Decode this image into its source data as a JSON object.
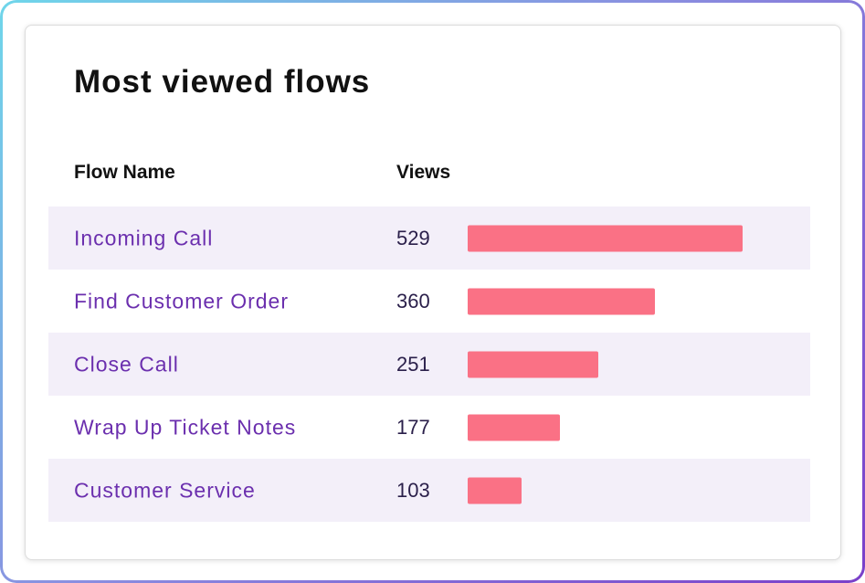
{
  "card": {
    "title": "Most viewed flows",
    "col_name": "Flow Name",
    "col_views": "Views"
  },
  "colors": {
    "bar": "#fa7185",
    "flow_name": "#6b2fae",
    "row_stripe": "#f3eff9"
  },
  "chart_data": {
    "type": "bar",
    "orientation": "horizontal",
    "title": "Most viewed flows",
    "categories": [
      "Incoming Call",
      "Find Customer Order",
      "Close Call",
      "Wrap Up Ticket Notes",
      "Customer Service"
    ],
    "values": [
      529,
      360,
      251,
      177,
      103
    ],
    "xlim": [
      0,
      529
    ]
  }
}
